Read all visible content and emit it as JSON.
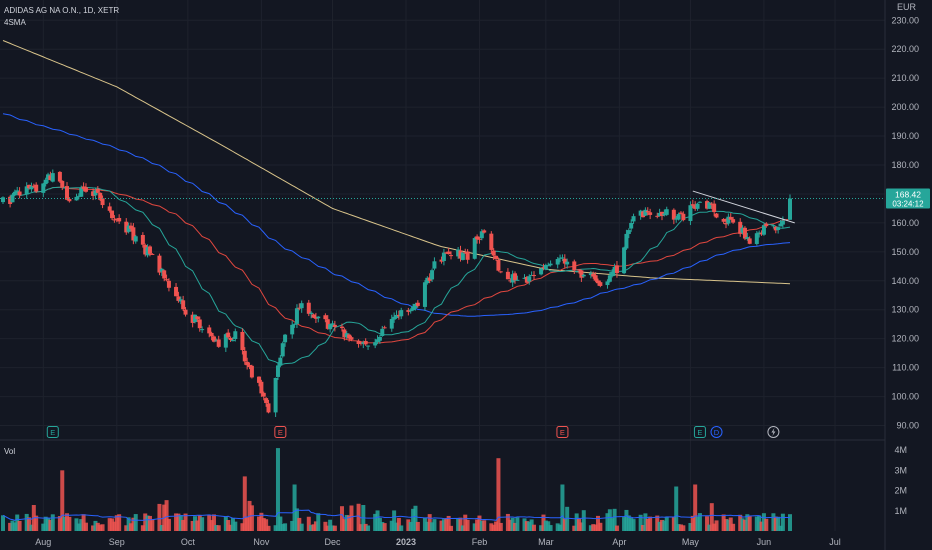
{
  "header": {
    "symbol_line": "ADIDAS AG NA O.N., 1D, XETR",
    "indicator_line": "4SMA",
    "currency": "EUR"
  },
  "volume_pane": {
    "title": "Vol"
  },
  "price_axis": {
    "ticks": [
      {
        "value": 90,
        "label": "90.00"
      },
      {
        "value": 100,
        "label": "100.00"
      },
      {
        "value": 110,
        "label": "110.00"
      },
      {
        "value": 120,
        "label": "120.00"
      },
      {
        "value": 130,
        "label": "130.00"
      },
      {
        "value": 140,
        "label": "140.00"
      },
      {
        "value": 150,
        "label": "150.00"
      },
      {
        "value": 160,
        "label": "160.00"
      },
      {
        "value": 170,
        "label": "170.00"
      },
      {
        "value": 180,
        "label": "180.00"
      },
      {
        "value": 190,
        "label": "190.00"
      },
      {
        "value": 200,
        "label": "200.00"
      },
      {
        "value": 210,
        "label": "210.00"
      },
      {
        "value": 220,
        "label": "220.00"
      },
      {
        "value": 230,
        "label": "230.00"
      }
    ],
    "last_price": {
      "value": 168.42,
      "label": "168.42",
      "countdown": "03:24:12"
    }
  },
  "volume_axis": {
    "ticks": [
      {
        "value": 1000000,
        "label": "1M"
      },
      {
        "value": 2000000,
        "label": "2M"
      },
      {
        "value": 3000000,
        "label": "3M"
      },
      {
        "value": 4000000,
        "label": "4M"
      }
    ]
  },
  "time_axis": {
    "labels": [
      "Aug",
      "Sep",
      "Oct",
      "Nov",
      "Dec",
      "2023",
      "Feb",
      "Mar",
      "Apr",
      "May",
      "Jun",
      "Jul"
    ]
  },
  "event_markers": [
    {
      "label": "E",
      "kind": "earnings",
      "color": "#26a69a"
    },
    {
      "label": "E",
      "kind": "earnings",
      "color": "#ef5350"
    },
    {
      "label": "E",
      "kind": "earnings",
      "color": "#ef5350"
    },
    {
      "label": "E",
      "kind": "earnings",
      "color": "#26a69a"
    },
    {
      "label": "D",
      "kind": "dividend",
      "color": "#2962ff"
    },
    {
      "label": "",
      "kind": "split-lightning",
      "color": "#b2b5be"
    }
  ],
  "colors": {
    "background": "#131722",
    "grid": "#1e222d",
    "up": "#26a69a",
    "down": "#ef5350",
    "sma_fast": "#26a69a",
    "sma_mid": "#e0473f",
    "sma_slow": "#2962ff",
    "sma_long": "#d9c48b",
    "trendline": "#d1d4dc",
    "last_price_line": "#26a69a"
  },
  "chart_data": {
    "type": "candlestick",
    "x_start": "2022-07-15",
    "x_end": "2023-06-12",
    "ylim": [
      85,
      237
    ],
    "volume_ylim": [
      0,
      4500000
    ],
    "anchors": [
      [
        "2022-07-15",
        167
      ],
      [
        "2022-07-22",
        170
      ],
      [
        "2022-07-29",
        172
      ],
      [
        "2022-08-05",
        176
      ],
      [
        "2022-08-12",
        168
      ],
      [
        "2022-08-19",
        171
      ],
      [
        "2022-08-26",
        168
      ],
      [
        "2022-09-02",
        160
      ],
      [
        "2022-09-09",
        155
      ],
      [
        "2022-09-16",
        148
      ],
      [
        "2022-09-23",
        138
      ],
      [
        "2022-09-30",
        130
      ],
      [
        "2022-10-07",
        124
      ],
      [
        "2022-10-14",
        118
      ],
      [
        "2022-10-21",
        122
      ],
      [
        "2022-10-28",
        108
      ],
      [
        "2022-11-04",
        96
      ],
      [
        "2022-11-11",
        120
      ],
      [
        "2022-11-18",
        132
      ],
      [
        "2022-11-25",
        126
      ],
      [
        "2022-12-02",
        124
      ],
      [
        "2022-12-09",
        120
      ],
      [
        "2022-12-16",
        118
      ],
      [
        "2022-12-23",
        124
      ],
      [
        "2022-12-30",
        128
      ],
      [
        "2023-01-06",
        133
      ],
      [
        "2023-01-13",
        145
      ],
      [
        "2023-01-20",
        150
      ],
      [
        "2023-01-27",
        149
      ],
      [
        "2023-02-03",
        158
      ],
      [
        "2023-02-10",
        143
      ],
      [
        "2023-02-17",
        140
      ],
      [
        "2023-02-24",
        142
      ],
      [
        "2023-03-03",
        147
      ],
      [
        "2023-03-10",
        148
      ],
      [
        "2023-03-17",
        142
      ],
      [
        "2023-03-24",
        140
      ],
      [
        "2023-03-31",
        144
      ],
      [
        "2023-04-07",
        162
      ],
      [
        "2023-04-14",
        164
      ],
      [
        "2023-04-21",
        163
      ],
      [
        "2023-04-28",
        162
      ],
      [
        "2023-05-05",
        168
      ],
      [
        "2023-05-12",
        163
      ],
      [
        "2023-05-19",
        160
      ],
      [
        "2023-05-26",
        154
      ],
      [
        "2023-06-02",
        158
      ],
      [
        "2023-06-09",
        160
      ],
      [
        "2023-06-12",
        168.42
      ]
    ],
    "sma_long_anchors": [
      [
        "2022-07-15",
        223
      ],
      [
        "2022-09-01",
        207
      ],
      [
        "2022-10-15",
        187
      ],
      [
        "2022-12-01",
        165
      ],
      [
        "2023-01-15",
        152
      ],
      [
        "2023-03-01",
        144
      ],
      [
        "2023-04-15",
        141
      ],
      [
        "2023-06-12",
        139
      ]
    ],
    "trendline": {
      "from": [
        "2023-05-02",
        171
      ],
      "to": [
        "2023-06-14",
        160
      ]
    },
    "volume_spikes": [
      [
        "2022-11-08",
        4100000
      ],
      [
        "2023-02-09",
        3600000
      ],
      [
        "2022-08-09",
        3000000
      ],
      [
        "2022-10-25",
        2700000
      ],
      [
        "2022-11-15",
        2300000
      ],
      [
        "2023-03-08",
        2300000
      ],
      [
        "2023-05-03",
        2300000
      ],
      [
        "2023-04-25",
        2200000
      ]
    ]
  }
}
